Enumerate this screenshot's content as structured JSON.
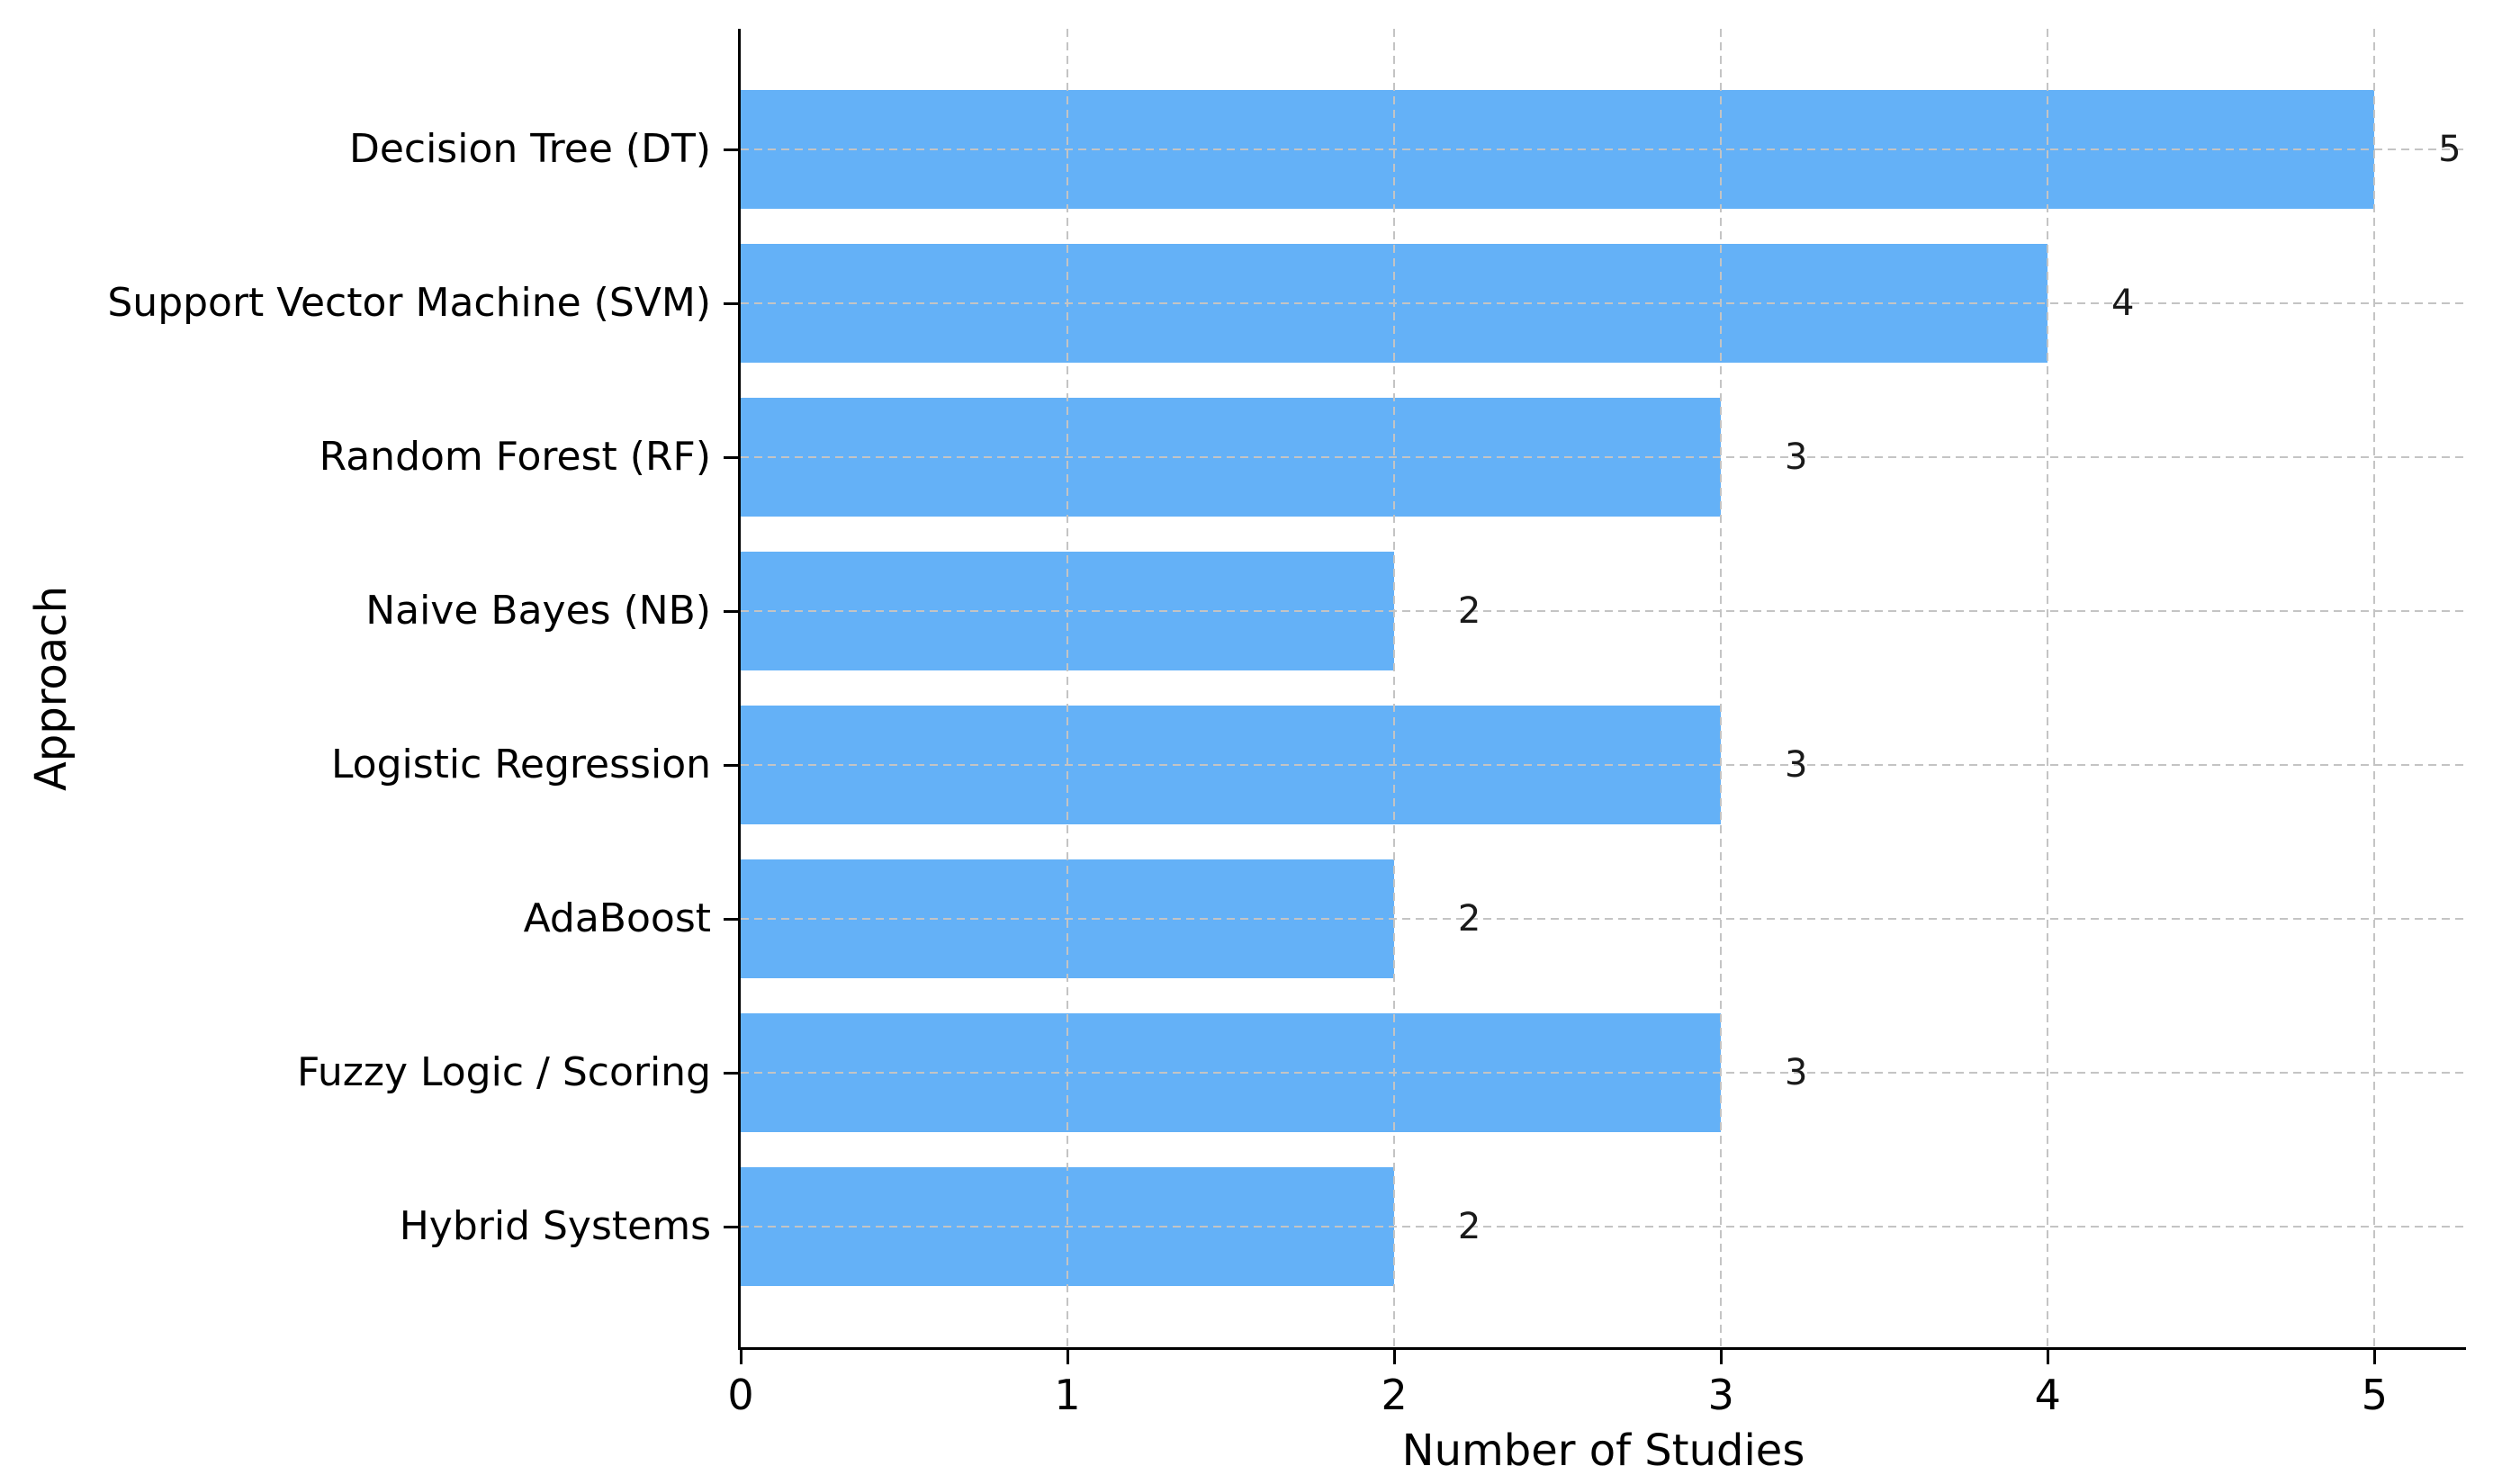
{
  "figure": {
    "background_color": "#ffffff",
    "bar_color": "#64b1f7",
    "grid_color": "#c4c4c4",
    "spine_color": "#000000",
    "text_color": "#000000"
  },
  "chart_data": {
    "type": "bar",
    "orientation": "horizontal",
    "title": "",
    "xlabel": "Number of Studies",
    "ylabel": "Approach",
    "categories": [
      "Decision Tree (DT)",
      "Support Vector Machine (SVM)",
      "Random Forest (RF)",
      "Naive Bayes (NB)",
      "Logistic Regression",
      "AdaBoost",
      "Fuzzy Logic / Scoring",
      "Hybrid Systems"
    ],
    "values": [
      5,
      4,
      3,
      2,
      3,
      2,
      3,
      2
    ],
    "value_labels": [
      "5",
      "4",
      "3",
      "2",
      "3",
      "2",
      "3",
      "2"
    ],
    "xticks": [
      0,
      1,
      2,
      3,
      4,
      5
    ],
    "xlim": [
      0,
      5.28
    ],
    "grid": "dashed-both-axes",
    "legend": "none"
  }
}
